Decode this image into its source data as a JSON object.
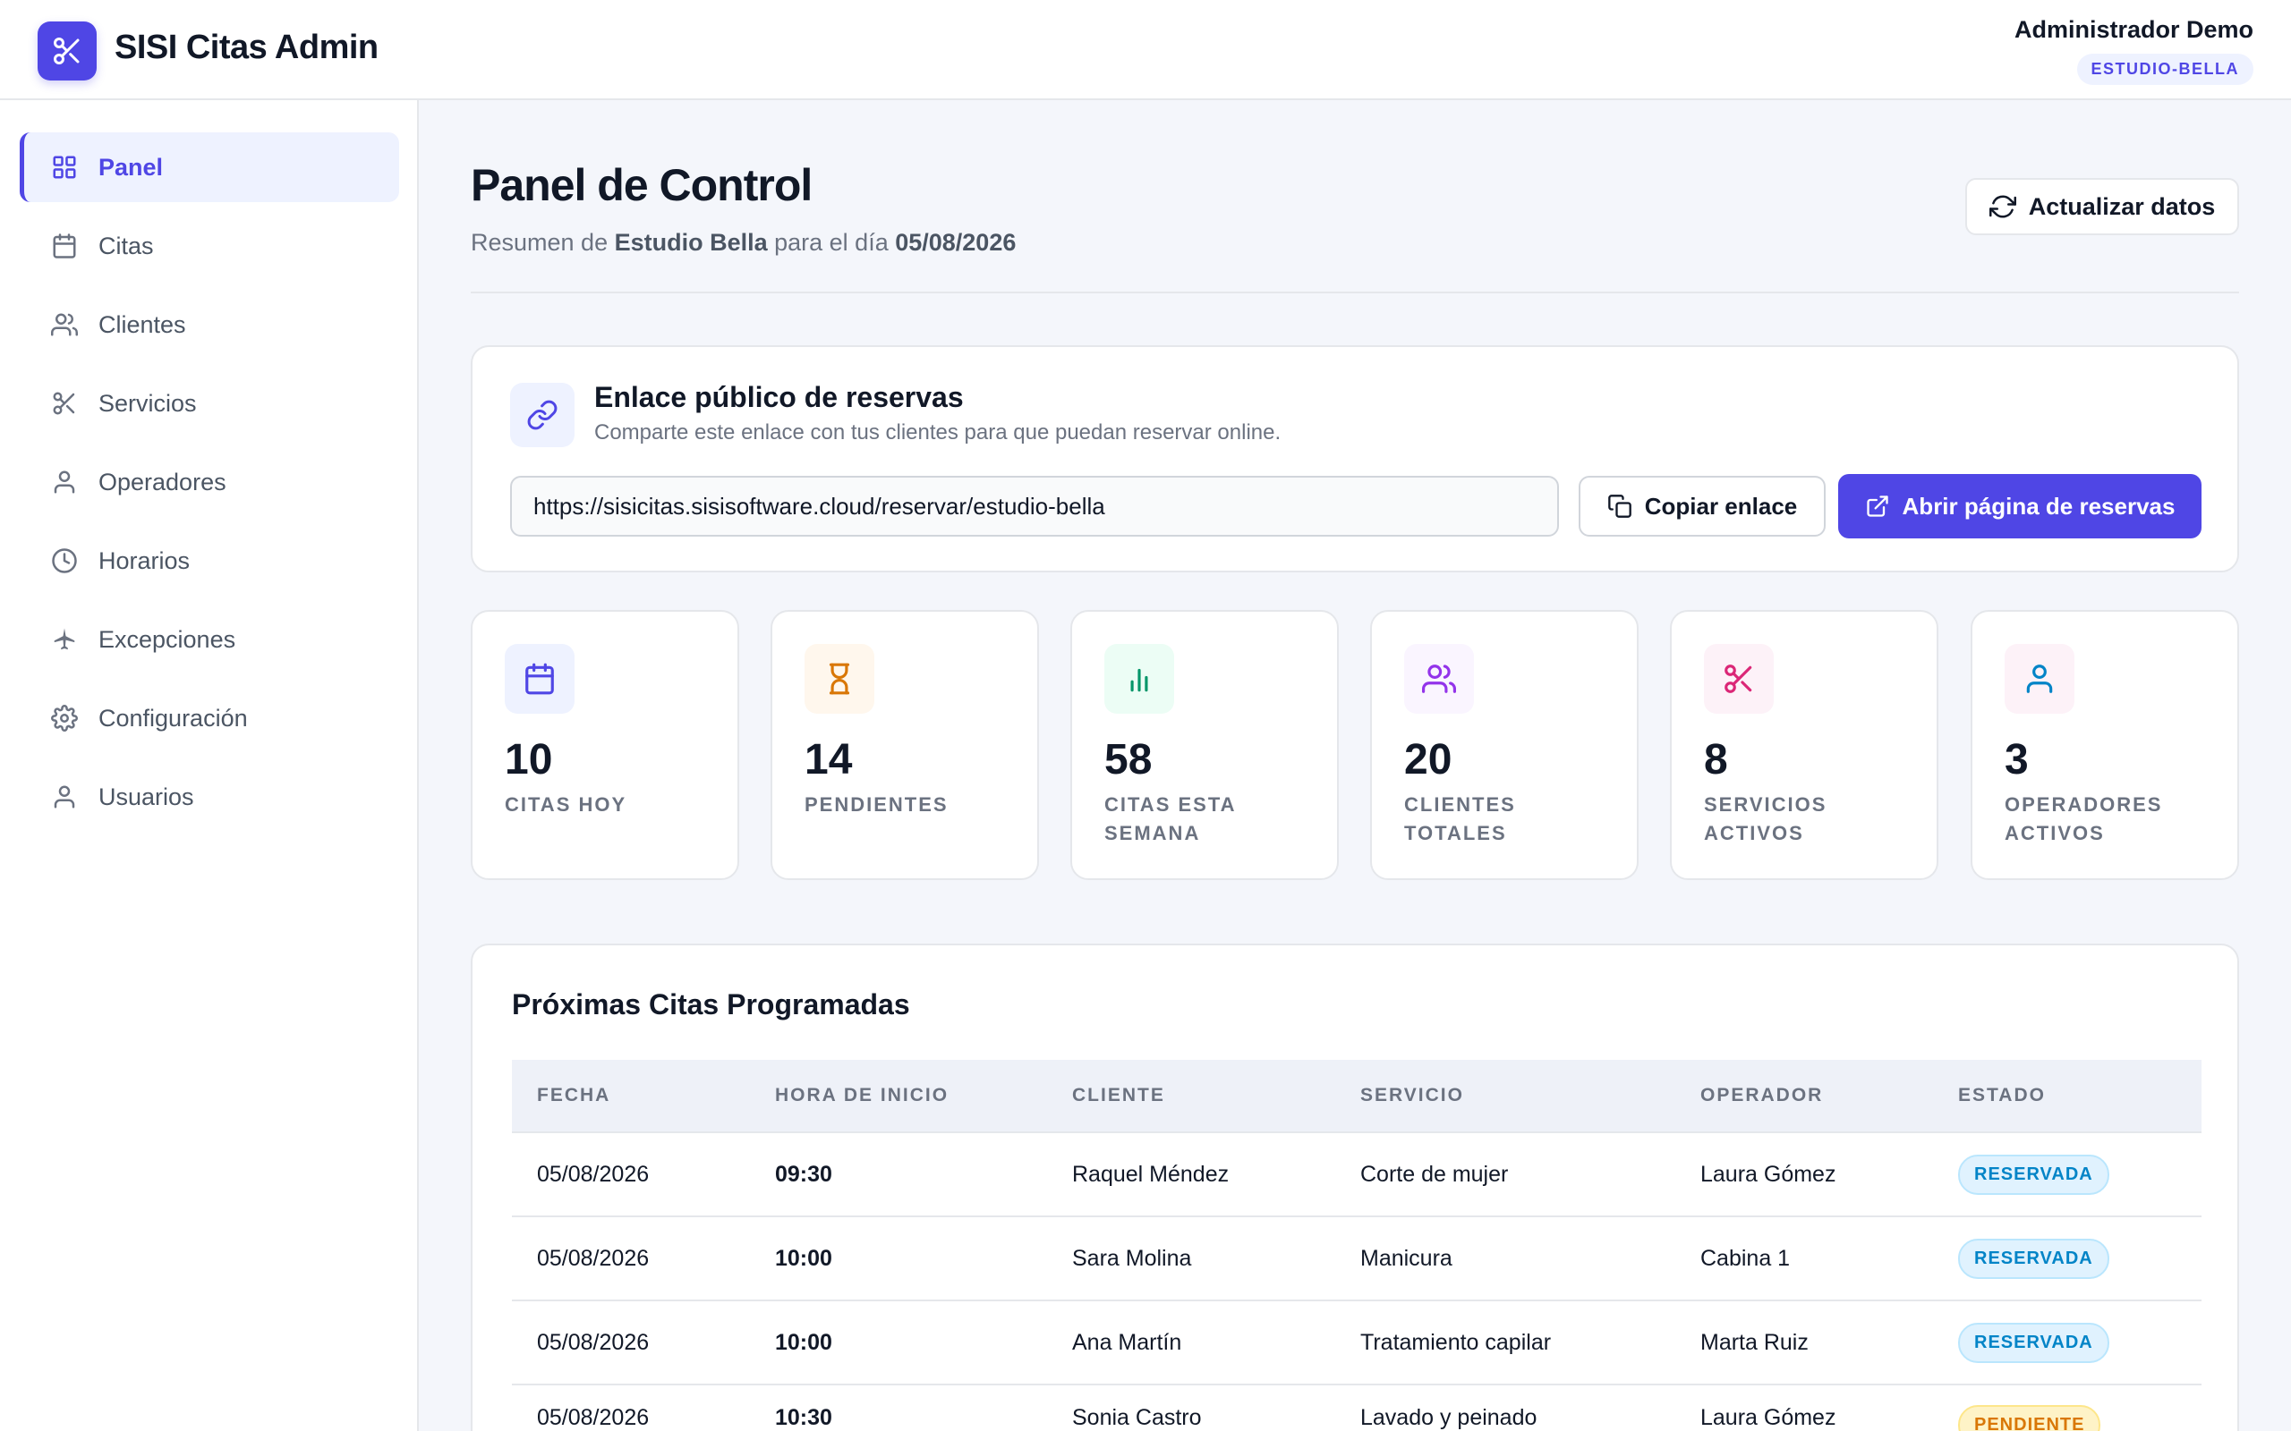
{
  "header": {
    "brand": "SISI Citas Admin",
    "user_name": "Administrador Demo",
    "tenant_badge": "ESTUDIO-BELLA"
  },
  "sidebar": {
    "items": [
      {
        "label": "Panel",
        "icon": "grid-icon",
        "active": true
      },
      {
        "label": "Citas",
        "icon": "calendar-icon"
      },
      {
        "label": "Clientes",
        "icon": "users-icon"
      },
      {
        "label": "Servicios",
        "icon": "scissors-icon"
      },
      {
        "label": "Operadores",
        "icon": "user-icon"
      },
      {
        "label": "Horarios",
        "icon": "clock-icon"
      },
      {
        "label": "Excepciones",
        "icon": "plane-icon"
      },
      {
        "label": "Configuración",
        "icon": "gear-icon"
      },
      {
        "label": "Usuarios",
        "icon": "user-icon"
      }
    ]
  },
  "page": {
    "title": "Panel de Control",
    "subtitle_prefix": "Resumen de ",
    "studio": "Estudio Bella",
    "subtitle_mid": " para el día ",
    "date": "05/08/2026",
    "refresh_label": "Actualizar datos"
  },
  "booking_link": {
    "title": "Enlace público de reservas",
    "description": "Comparte este enlace con tus clientes para que puedan reservar online.",
    "url": "https://sisicitas.sisisoftware.cloud/reservar/estudio-bella",
    "copy_label": "Copiar enlace",
    "open_label": "Abrir página de reservas"
  },
  "stats": [
    {
      "value": "10",
      "label": "Citas hoy",
      "icon": "calendar-icon",
      "color": "#4f46e5",
      "bg": "#eef2ff"
    },
    {
      "value": "14",
      "label": "Pendientes",
      "icon": "hourglass-icon",
      "color": "#d97706",
      "bg": "#fff7ed"
    },
    {
      "value": "58",
      "label": "Citas esta semana",
      "icon": "bar-chart-icon",
      "color": "#059669",
      "bg": "#ecfdf5"
    },
    {
      "value": "20",
      "label": "Clientes totales",
      "icon": "users-icon",
      "color": "#9333ea",
      "bg": "#faf5ff"
    },
    {
      "value": "8",
      "label": "Servicios activos",
      "icon": "scissors-icon",
      "color": "#db2777",
      "bg": "#fdf2f8"
    },
    {
      "value": "3",
      "label": "Operadores activos",
      "icon": "user-icon",
      "color": "#0284c7",
      "bg": "#fdf2f8"
    }
  ],
  "appointments": {
    "title": "Próximas Citas Programadas",
    "columns": [
      "FECHA",
      "HORA DE INICIO",
      "CLIENTE",
      "SERVICIO",
      "OPERADOR",
      "ESTADO"
    ],
    "rows": [
      {
        "fecha": "05/08/2026",
        "hora": "09:30",
        "cliente": "Raquel Méndez",
        "servicio": "Corte de mujer",
        "operador": "Laura Gómez",
        "estado": "RESERVADA"
      },
      {
        "fecha": "05/08/2026",
        "hora": "10:00",
        "cliente": "Sara Molina",
        "servicio": "Manicura",
        "operador": "Cabina 1",
        "estado": "RESERVADA"
      },
      {
        "fecha": "05/08/2026",
        "hora": "10:00",
        "cliente": "Ana Martín",
        "servicio": "Tratamiento capilar",
        "operador": "Marta Ruiz",
        "estado": "RESERVADA"
      },
      {
        "fecha": "05/08/2026",
        "hora": "10:30",
        "cliente": "Sonia Castro",
        "servicio": "Lavado y peinado",
        "operador": "Laura Gómez",
        "estado": "PENDIENTE"
      }
    ]
  },
  "colors": {
    "accent": "#4f46e5",
    "reservada": "#0284c7",
    "pendiente": "#d97706"
  }
}
